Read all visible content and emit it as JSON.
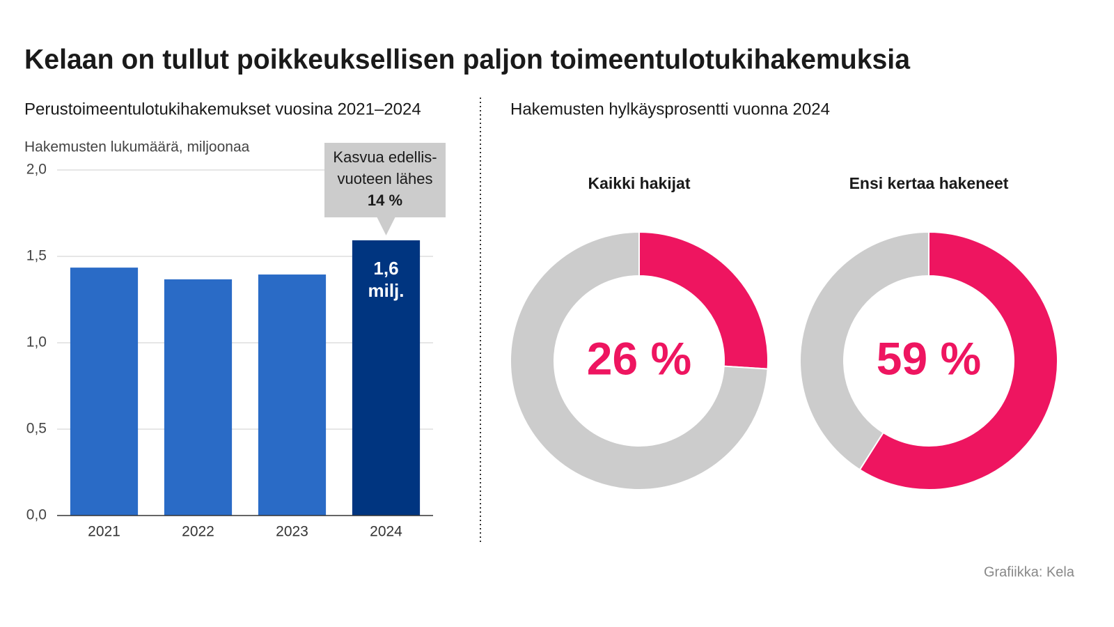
{
  "title": "Kelaan on tullut poikkeuksellisen paljon toimeentulotukihakemuksia",
  "source": "Grafiikka: Kela",
  "chart_data": [
    {
      "type": "bar",
      "subtitle": "Perustoimeentulotukihakemukset vuosina 2021–2024",
      "y_label": "Hakemusten lukumäärä, miljoonaa",
      "categories": [
        "2021",
        "2022",
        "2023",
        "2024"
      ],
      "values": [
        1.435,
        1.367,
        1.395,
        1.593
      ],
      "value_labels": [
        null,
        null,
        null,
        "1,6 milj."
      ],
      "colors": [
        "#2a6bc6",
        "#2a6bc6",
        "#2a6bc6",
        "#003580"
      ],
      "ylim": [
        0,
        2
      ],
      "yticks": [
        {
          "value": 0,
          "label": "0,0"
        },
        {
          "value": 0.5,
          "label": "0,5"
        },
        {
          "value": 1,
          "label": "1,0"
        },
        {
          "value": 1.5,
          "label": "1,5"
        },
        {
          "value": 2,
          "label": "2,0"
        }
      ],
      "grid": true,
      "annotation": [
        "Kasvua edellis-",
        "vuoteen lähes",
        "14 %"
      ]
    },
    {
      "type": "donut",
      "section_title": "Hakemusten hylkäysprosentti vuonna 2024",
      "title": "Kaikki hakijat",
      "values": [
        26,
        74
      ],
      "value_labels": [
        "26 %",
        null
      ],
      "colors": [
        "#ee1560",
        "#cccccc"
      ]
    },
    {
      "type": "donut",
      "title": "Ensi kertaa hakeneet",
      "values": [
        59,
        41
      ],
      "value_labels": [
        "59 %",
        null
      ],
      "colors": [
        "#ee1560",
        "#cccccc"
      ]
    }
  ]
}
